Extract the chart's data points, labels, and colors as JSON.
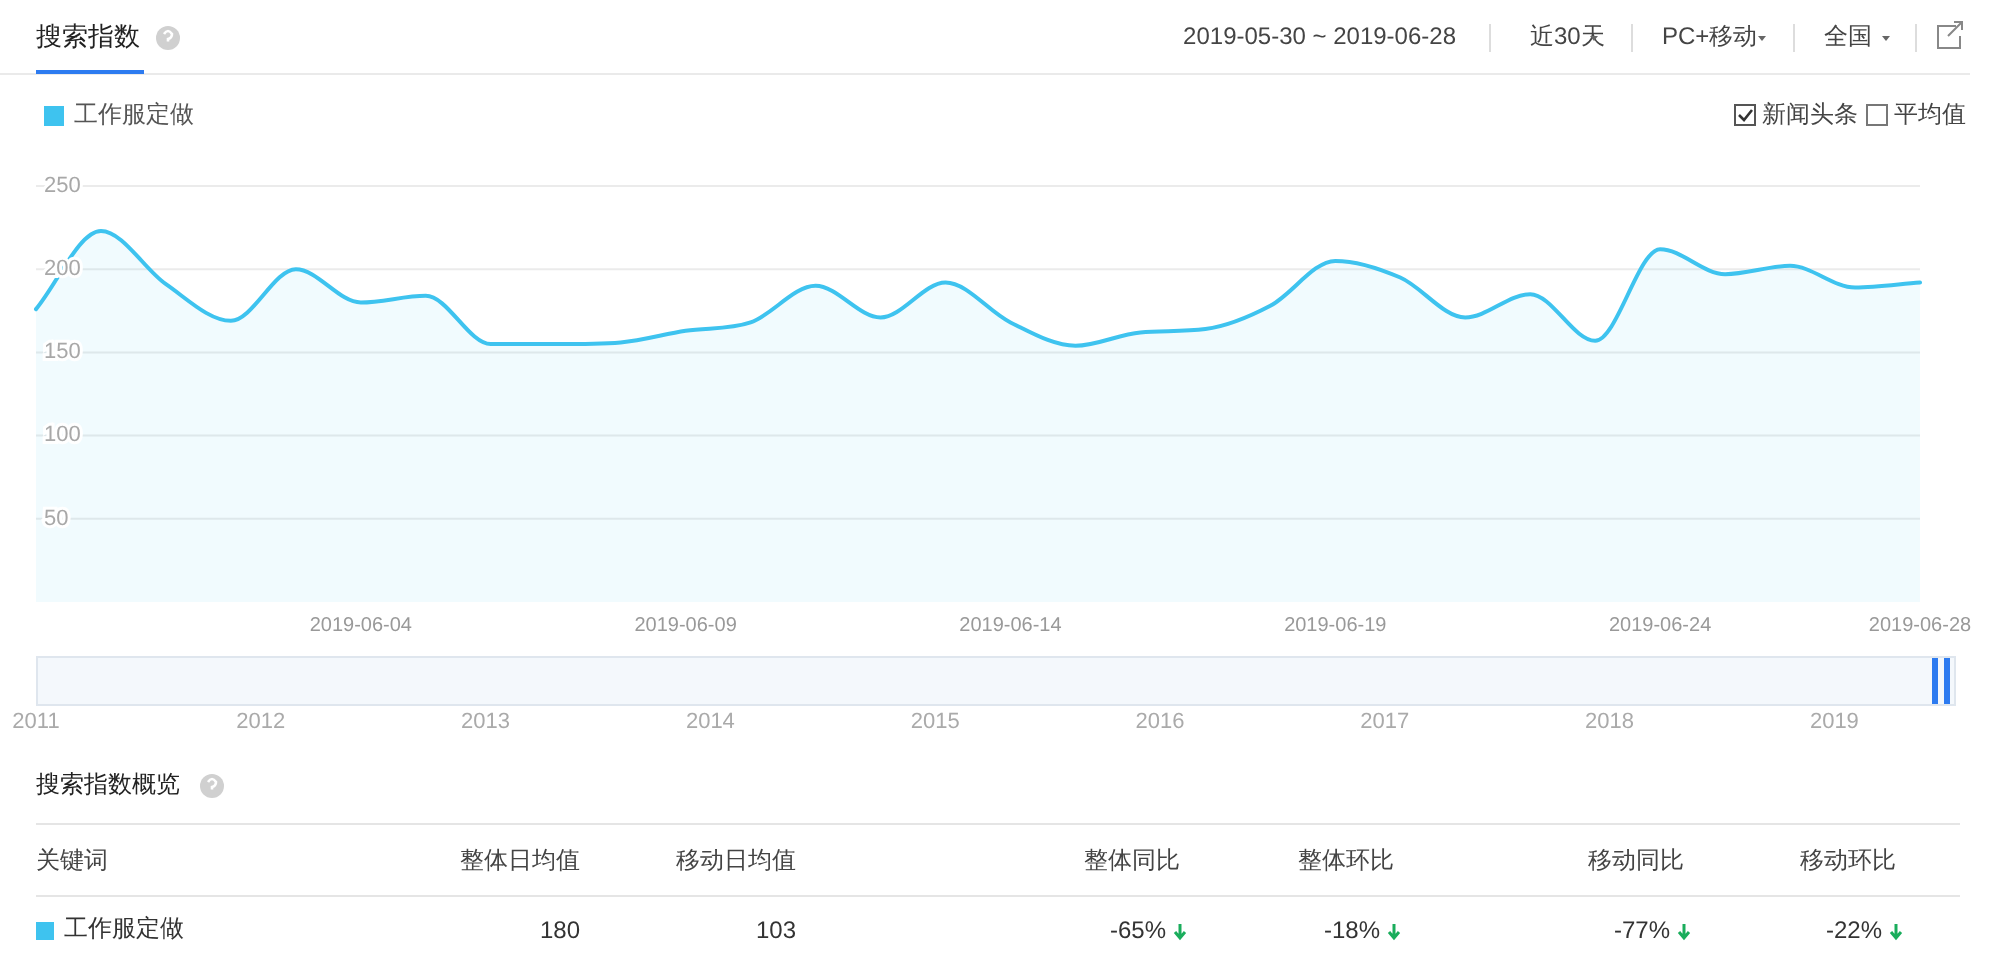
{
  "chart_data": {
    "type": "area",
    "title": "搜索指数",
    "x": [
      "2019-05-30",
      "2019-05-31",
      "2019-06-01",
      "2019-06-02",
      "2019-06-03",
      "2019-06-04",
      "2019-06-05",
      "2019-06-06",
      "2019-06-07",
      "2019-06-08",
      "2019-06-09",
      "2019-06-10",
      "2019-06-11",
      "2019-06-12",
      "2019-06-13",
      "2019-06-14",
      "2019-06-15",
      "2019-06-16",
      "2019-06-17",
      "2019-06-18",
      "2019-06-19",
      "2019-06-20",
      "2019-06-21",
      "2019-06-22",
      "2019-06-23",
      "2019-06-24",
      "2019-06-25",
      "2019-06-26",
      "2019-06-27",
      "2019-06-28"
    ],
    "series": [
      {
        "name": "工作服定做",
        "color": "#3ec3ef",
        "values": [
          176,
          223,
          191,
          169,
          200,
          180,
          184,
          155,
          155,
          156,
          163,
          168,
          190,
          171,
          192,
          168,
          154,
          162,
          164,
          178,
          205,
          195,
          171,
          185,
          157,
          212,
          197,
          202,
          189,
          192
        ]
      }
    ],
    "xlim": [
      "2019-05-30",
      "2019-06-28"
    ],
    "xticks": [
      "2019-06-04",
      "2019-06-09",
      "2019-06-14",
      "2019-06-19",
      "2019-06-24",
      "2019-06-28"
    ],
    "ylim": [
      0,
      250
    ],
    "yticks": [
      50,
      100,
      150,
      200,
      250
    ],
    "grid": "y",
    "legend": "top left",
    "annotations": [
      "2019-05-30 ~ 2019-06-28",
      "近30天",
      "PC+移动",
      "全国",
      "新闻头条",
      "平均值",
      "2011",
      "2012",
      "2013",
      "2014",
      "2015",
      "2016",
      "2017",
      "2018",
      "2019",
      "搜索指数概览",
      "关键词",
      "整体日均值",
      "移动日均值",
      "整体同比",
      "整体环比",
      "移动同比",
      "移动环比",
      "工作服定做",
      "180",
      "103",
      "-65%",
      "-18%",
      "-77%",
      "-22%"
    ]
  }
}
